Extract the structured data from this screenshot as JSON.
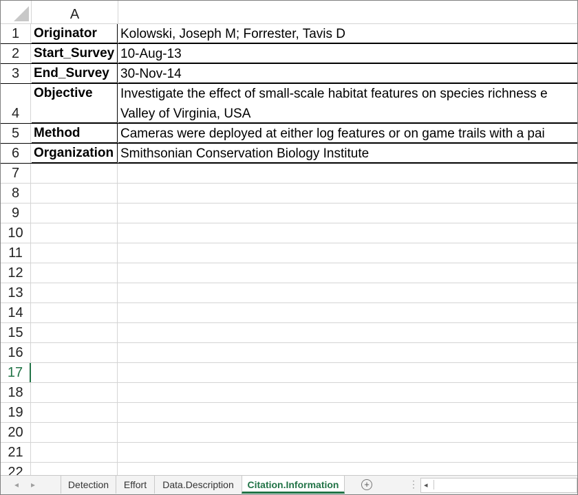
{
  "sheet": {
    "column_header": "A",
    "rows": [
      {
        "num": "1",
        "label": "Originator",
        "value": "Kolowski, Joseph M; Forrester, Tavis D"
      },
      {
        "num": "2",
        "label": "Start_Survey",
        "value": "10-Aug-13"
      },
      {
        "num": "3",
        "label": "End_Survey",
        "value": "30-Nov-14"
      },
      {
        "num": "4",
        "label": "Objective",
        "value": "Investigate the effect of small-scale habitat features on species richness e",
        "value2": "Valley of Virginia, USA"
      },
      {
        "num": "5",
        "label": "Method",
        "value": "Cameras were deployed at either log features or on game trails with a pai"
      },
      {
        "num": "6",
        "label": "Organization",
        "value": "Smithsonian Conservation Biology Institute"
      }
    ],
    "empty_rows": [
      "7",
      "8",
      "9",
      "10",
      "11",
      "12",
      "13",
      "14",
      "15",
      "16",
      "17",
      "18",
      "19",
      "20",
      "21",
      "22"
    ],
    "active_row": "17"
  },
  "tabs": {
    "items": [
      "Detection",
      "Effort",
      "Data.Description",
      "Citation.Information"
    ],
    "active": "Citation.Information",
    "add_icon": "+",
    "accent": "#217346"
  }
}
